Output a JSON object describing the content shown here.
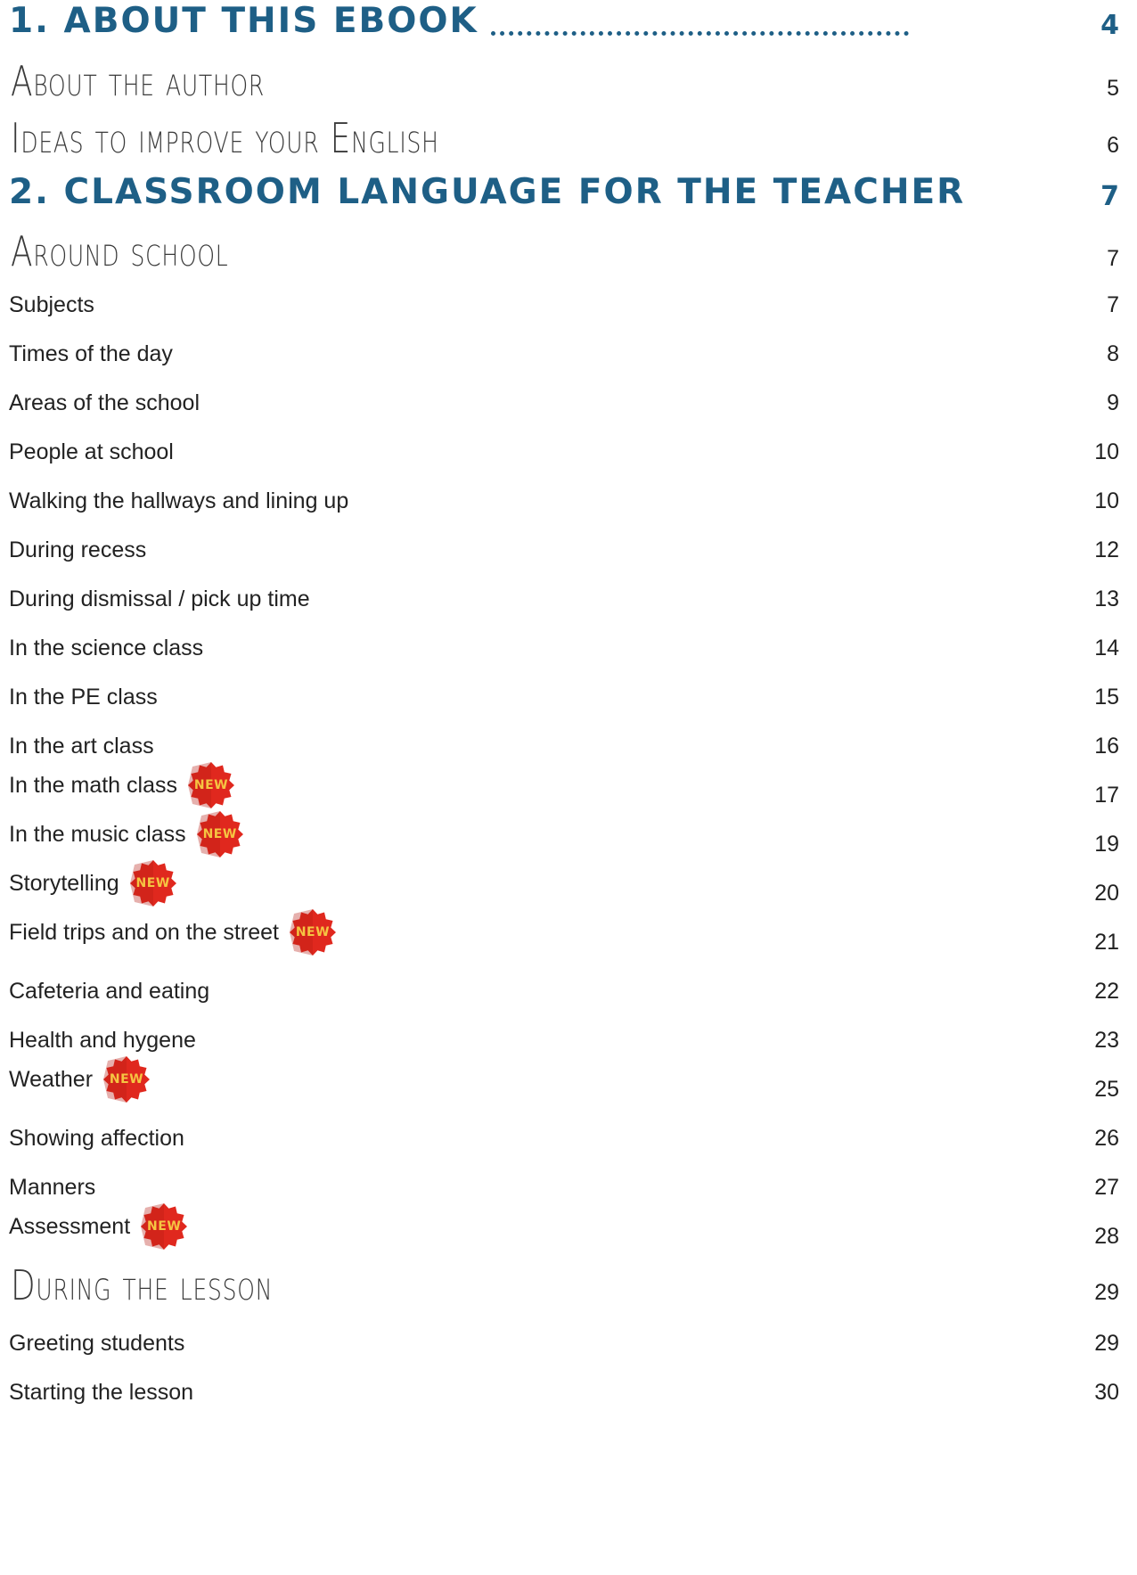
{
  "toc": [
    {
      "level": "chapter",
      "title": "1. About this ebook",
      "page": "4"
    },
    {
      "level": "section",
      "title": "About the author",
      "page": "5"
    },
    {
      "level": "section",
      "title": "Ideas to improve your English",
      "page": "6"
    },
    {
      "level": "chapter",
      "title": "2. Classroom language for the teacher",
      "page": "7"
    },
    {
      "level": "section",
      "title": "Around school",
      "page": "7"
    },
    {
      "level": "entry",
      "title": "Subjects",
      "page": "7",
      "new": false
    },
    {
      "level": "entry",
      "title": "Times of the day",
      "page": "8",
      "new": false
    },
    {
      "level": "entry",
      "title": "Areas of the school",
      "page": "9",
      "new": false
    },
    {
      "level": "entry",
      "title": "People at school",
      "page": "10",
      "new": false
    },
    {
      "level": "entry",
      "title": "Walking the hallways and lining up",
      "page": "10",
      "new": false
    },
    {
      "level": "entry",
      "title": "During recess",
      "page": "12",
      "new": false
    },
    {
      "level": "entry",
      "title": "During dismissal / pick up time",
      "page": "13",
      "new": false
    },
    {
      "level": "entry",
      "title": "In the science class",
      "page": "14",
      "new": false
    },
    {
      "level": "entry",
      "title": "In the PE class",
      "page": "15",
      "new": false
    },
    {
      "level": "entry",
      "title": "In the art class",
      "page": "16",
      "new": false
    },
    {
      "level": "entry",
      "title": "In the math class",
      "page": "17",
      "new": true
    },
    {
      "level": "entry",
      "title": "In the music class",
      "page": "19",
      "new": true
    },
    {
      "level": "entry",
      "title": "Storytelling",
      "page": "20",
      "new": true
    },
    {
      "level": "entry",
      "title": "Field trips and on the street",
      "page": "21",
      "new": true
    },
    {
      "level": "entry",
      "title": "Cafeteria and eating",
      "page": "22",
      "new": false
    },
    {
      "level": "entry",
      "title": "Health and hygene",
      "page": "23",
      "new": false
    },
    {
      "level": "entry",
      "title": "Weather",
      "page": "25",
      "new": true
    },
    {
      "level": "entry",
      "title": "Showing affection",
      "page": "26",
      "new": false
    },
    {
      "level": "entry",
      "title": "Manners",
      "page": "27",
      "new": false
    },
    {
      "level": "entry",
      "title": "Assessment",
      "page": "28",
      "new": true
    },
    {
      "level": "section",
      "title": "During the lesson",
      "page": "29"
    },
    {
      "level": "entry",
      "title": "Greeting students",
      "page": "29",
      "new": false
    },
    {
      "level": "entry",
      "title": "Starting the lesson",
      "page": "30",
      "new": false
    }
  ],
  "new_badge_label": "NEW",
  "colors": {
    "chapter": "#1e5f86",
    "badge": "#e0281e",
    "badge_text": "#f5c542"
  }
}
